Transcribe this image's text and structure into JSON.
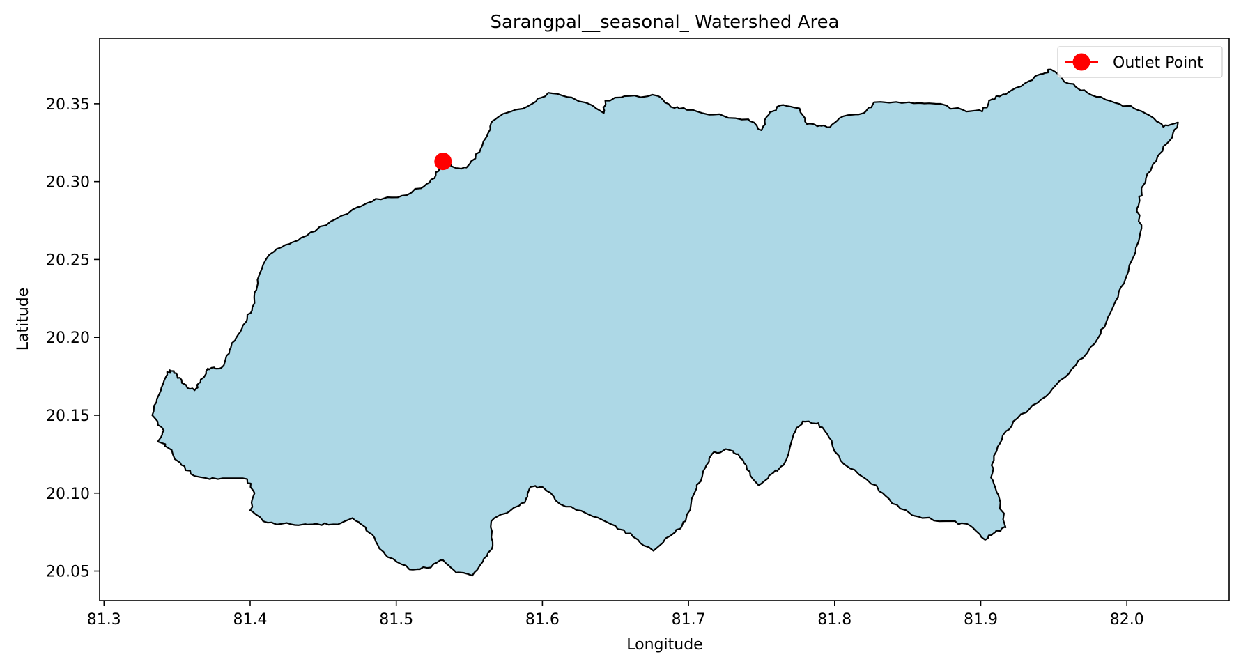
{
  "chart_data": {
    "type": "map",
    "title": "Sarangpal__seasonal_ Watershed Area",
    "xlabel": "Longitude",
    "ylabel": "Latitude",
    "xlim": [
      81.297,
      82.07
    ],
    "ylim": [
      20.031,
      20.392
    ],
    "xticks": [
      81.3,
      81.4,
      81.5,
      81.6,
      81.7,
      81.8,
      81.9,
      82.0
    ],
    "xtick_labels": [
      "81.3",
      "81.4",
      "81.5",
      "81.6",
      "81.7",
      "81.8",
      "81.9",
      "82.0"
    ],
    "yticks": [
      20.05,
      20.1,
      20.15,
      20.2,
      20.25,
      20.3,
      20.35
    ],
    "ytick_labels": [
      "20.05",
      "20.10",
      "20.15",
      "20.20",
      "20.25",
      "20.30",
      "20.35"
    ],
    "grid": false,
    "legend_position": "top-right",
    "legend": [
      {
        "label": "Outlet Point",
        "marker": "circle",
        "color": "#ff0000"
      }
    ],
    "watershed": {
      "fill": "#add8e6",
      "edge": "#000000",
      "boundary_lonlat": [
        [
          81.333,
          20.15
        ],
        [
          81.338,
          20.164
        ],
        [
          81.342,
          20.174
        ],
        [
          81.345,
          20.179
        ],
        [
          81.35,
          20.176
        ],
        [
          81.355,
          20.17
        ],
        [
          81.362,
          20.166
        ],
        [
          81.366,
          20.171
        ],
        [
          81.371,
          20.18
        ],
        [
          81.376,
          20.18
        ],
        [
          81.382,
          20.182
        ],
        [
          81.386,
          20.192
        ],
        [
          81.392,
          20.202
        ],
        [
          81.398,
          20.212
        ],
        [
          81.403,
          20.222
        ],
        [
          81.405,
          20.237
        ],
        [
          81.413,
          20.253
        ],
        [
          81.427,
          20.26
        ],
        [
          81.435,
          20.264
        ],
        [
          81.452,
          20.272
        ],
        [
          81.47,
          20.282
        ],
        [
          81.486,
          20.289
        ],
        [
          81.504,
          20.291
        ],
        [
          81.519,
          20.297
        ],
        [
          81.527,
          20.304
        ],
        [
          81.532,
          20.313
        ],
        [
          81.54,
          20.309
        ],
        [
          81.548,
          20.309
        ],
        [
          81.557,
          20.319
        ],
        [
          81.562,
          20.329
        ],
        [
          81.566,
          20.339
        ],
        [
          81.575,
          20.344
        ],
        [
          81.593,
          20.35
        ],
        [
          81.604,
          20.357
        ],
        [
          81.62,
          20.354
        ],
        [
          81.634,
          20.349
        ],
        [
          81.642,
          20.344
        ],
        [
          81.643,
          20.352
        ],
        [
          81.66,
          20.355
        ],
        [
          81.679,
          20.355
        ],
        [
          81.688,
          20.348
        ],
        [
          81.699,
          20.346
        ],
        [
          81.717,
          20.343
        ],
        [
          81.741,
          20.34
        ],
        [
          81.75,
          20.333
        ],
        [
          81.755,
          20.343
        ],
        [
          81.763,
          20.349
        ],
        [
          81.776,
          20.347
        ],
        [
          81.781,
          20.337
        ],
        [
          81.79,
          20.336
        ],
        [
          81.797,
          20.335
        ],
        [
          81.806,
          20.342
        ],
        [
          81.82,
          20.344
        ],
        [
          81.827,
          20.351
        ],
        [
          81.851,
          20.351
        ],
        [
          81.869,
          20.35
        ],
        [
          81.888,
          20.346
        ],
        [
          81.901,
          20.345
        ],
        [
          81.908,
          20.353
        ],
        [
          81.917,
          20.356
        ],
        [
          81.93,
          20.363
        ],
        [
          81.941,
          20.369
        ],
        [
          81.948,
          20.372
        ],
        [
          81.96,
          20.363
        ],
        [
          81.973,
          20.357
        ],
        [
          81.988,
          20.352
        ],
        [
          82.005,
          20.347
        ],
        [
          82.018,
          20.341
        ],
        [
          82.025,
          20.335
        ],
        [
          82.035,
          20.338
        ],
        [
          82.029,
          20.326
        ],
        [
          82.021,
          20.316
        ],
        [
          82.014,
          20.305
        ],
        [
          82.01,
          20.294
        ],
        [
          82.007,
          20.283
        ],
        [
          82.01,
          20.27
        ],
        [
          82.006,
          20.255
        ],
        [
          82.0,
          20.24
        ],
        [
          81.994,
          20.226
        ],
        [
          81.986,
          20.21
        ],
        [
          81.978,
          20.196
        ],
        [
          81.965,
          20.182
        ],
        [
          81.952,
          20.17
        ],
        [
          81.939,
          20.158
        ],
        [
          81.925,
          20.148
        ],
        [
          81.915,
          20.137
        ],
        [
          81.909,
          20.124
        ],
        [
          81.907,
          20.11
        ],
        [
          81.912,
          20.099
        ],
        [
          81.917,
          20.078
        ],
        [
          81.91,
          20.075
        ],
        [
          81.903,
          20.07
        ],
        [
          81.893,
          20.079
        ],
        [
          81.88,
          20.082
        ],
        [
          81.86,
          20.084
        ],
        [
          81.845,
          20.09
        ],
        [
          81.833,
          20.1
        ],
        [
          81.82,
          20.11
        ],
        [
          81.804,
          20.121
        ],
        [
          81.796,
          20.136
        ],
        [
          81.789,
          20.145
        ],
        [
          81.778,
          20.146
        ],
        [
          81.772,
          20.138
        ],
        [
          81.765,
          20.118
        ],
        [
          81.758,
          20.113
        ],
        [
          81.748,
          20.105
        ],
        [
          81.74,
          20.115
        ],
        [
          81.734,
          20.125
        ],
        [
          81.727,
          20.128
        ],
        [
          81.716,
          20.125
        ],
        [
          81.71,
          20.114
        ],
        [
          81.704,
          20.1
        ],
        [
          81.698,
          20.082
        ],
        [
          81.691,
          20.075
        ],
        [
          81.676,
          20.063
        ],
        [
          81.662,
          20.072
        ],
        [
          81.65,
          20.079
        ],
        [
          81.63,
          20.087
        ],
        [
          81.612,
          20.093
        ],
        [
          81.6,
          20.104
        ],
        [
          81.592,
          20.104
        ],
        [
          81.588,
          20.094
        ],
        [
          81.577,
          20.088
        ],
        [
          81.565,
          20.082
        ],
        [
          81.566,
          20.066
        ],
        [
          81.56,
          20.058
        ],
        [
          81.552,
          20.047
        ],
        [
          81.541,
          20.049
        ],
        [
          81.532,
          20.057
        ],
        [
          81.521,
          20.052
        ],
        [
          81.509,
          20.051
        ],
        [
          81.494,
          20.059
        ],
        [
          81.486,
          20.069
        ],
        [
          81.479,
          20.078
        ],
        [
          81.47,
          20.084
        ],
        [
          81.457,
          20.08
        ],
        [
          81.443,
          20.08
        ],
        [
          81.428,
          20.08
        ],
        [
          81.412,
          20.081
        ],
        [
          81.4,
          20.089
        ],
        [
          81.403,
          20.1
        ],
        [
          81.398,
          20.109
        ],
        [
          81.378,
          20.109
        ],
        [
          81.362,
          20.111
        ],
        [
          81.353,
          20.118
        ],
        [
          81.344,
          20.129
        ],
        [
          81.337,
          20.133
        ],
        [
          81.341,
          20.14
        ]
      ]
    },
    "outlet_point": {
      "lon": 81.532,
      "lat": 20.313,
      "color": "#ff0000"
    }
  }
}
